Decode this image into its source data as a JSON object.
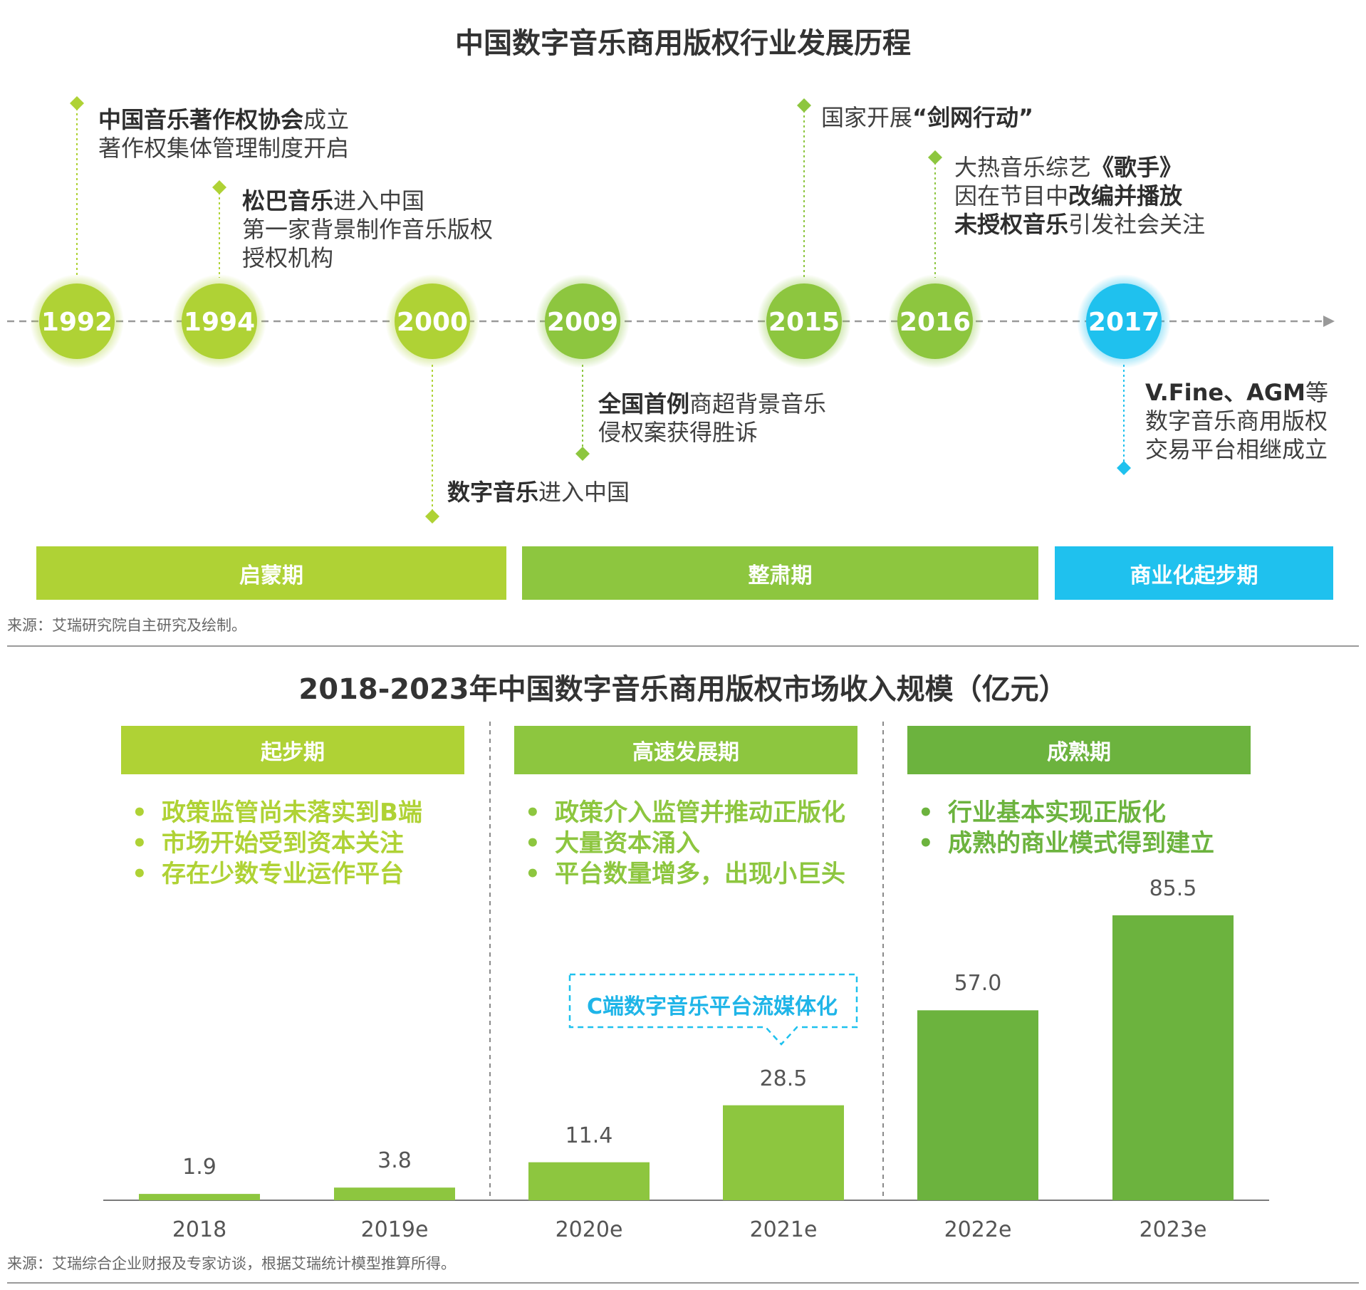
{
  "timeline": {
    "title": "中国数字音乐商用版权行业发展历程",
    "years": [
      "1992",
      "1994",
      "2000",
      "2009",
      "2015",
      "2016",
      "2017"
    ],
    "events": [
      {
        "year": "1992",
        "lines": [
          [
            {
              "t": "中国音乐著作权协会",
              "b": true
            },
            {
              "t": "成立",
              "b": false
            }
          ],
          [
            {
              "t": "著作权集体管理制度开启",
              "b": false
            }
          ]
        ]
      },
      {
        "year": "1994",
        "lines": [
          [
            {
              "t": "松巴音乐",
              "b": true
            },
            {
              "t": "进入中国",
              "b": false
            }
          ],
          [
            {
              "t": "第一家背景制作音乐版权",
              "b": false
            }
          ],
          [
            {
              "t": "授权机构",
              "b": false
            }
          ]
        ]
      },
      {
        "year": "2000",
        "lines": [
          [
            {
              "t": "数字音乐",
              "b": true
            },
            {
              "t": "进入中国",
              "b": false
            }
          ]
        ]
      },
      {
        "year": "2009",
        "lines": [
          [
            {
              "t": "全国首例",
              "b": true
            },
            {
              "t": "商超背景音乐",
              "b": false
            }
          ],
          [
            {
              "t": "侵权案获得胜诉",
              "b": false
            }
          ]
        ]
      },
      {
        "year": "2015",
        "lines": [
          [
            {
              "t": "国家开展",
              "b": false
            },
            {
              "t": "“剑网行动”",
              "b": true
            }
          ]
        ]
      },
      {
        "year": "2016",
        "lines": [
          [
            {
              "t": "大热音乐综艺",
              "b": false
            },
            {
              "t": "《歌手》",
              "b": true
            }
          ],
          [
            {
              "t": "因在节目中",
              "b": false
            },
            {
              "t": "改编并播放",
              "b": true
            }
          ],
          [
            {
              "t": "未授权音乐",
              "b": true
            },
            {
              "t": "引发社会关注",
              "b": false
            }
          ]
        ]
      },
      {
        "year": "2017",
        "lines": [
          [
            {
              "t": "V.Fine、AGM",
              "b": true
            },
            {
              "t": "等",
              "b": false
            }
          ],
          [
            {
              "t": "数字音乐商用版权",
              "b": false
            }
          ],
          [
            {
              "t": "交易平台相继成立",
              "b": false
            }
          ]
        ]
      }
    ],
    "phases": [
      "启蒙期",
      "整肃期",
      "商业化起步期"
    ],
    "source": "来源：艾瑞研究院自主研究及绘制。"
  },
  "colors": {
    "lime": "#afd235",
    "green": "#8dc63f",
    "dark_green": "#6cb33e",
    "cyan": "#1fc1ee",
    "axis": "#999999"
  },
  "chart_data": {
    "type": "bar",
    "title": "2018-2023年中国数字音乐商用版权市场收入规模（亿元）",
    "categories": [
      "2018",
      "2019e",
      "2020e",
      "2021e",
      "2022e",
      "2023e"
    ],
    "values": [
      1.9,
      3.8,
      11.4,
      28.5,
      57.0,
      85.5
    ],
    "value_labels": [
      "1.9",
      "3.8",
      "11.4",
      "28.5",
      "57.0",
      "85.5"
    ],
    "xlabel": "",
    "ylabel": "",
    "ylim": [
      0,
      85.5
    ],
    "grid": false,
    "phases": [
      {
        "name": "起步期",
        "bullets": [
          "政策监管尚未落实到B端",
          "市场开始受到资本关注",
          "存在少数专业运作平台"
        ]
      },
      {
        "name": "高速发展期",
        "bullets": [
          "政策介入监管并推动正版化",
          "大量资本涌入",
          "平台数量增多，出现小巨头"
        ]
      },
      {
        "name": "成熟期",
        "bullets": [
          "行业基本实现正版化",
          "成熟的商业模式得到建立"
        ]
      }
    ],
    "annotation": "C端数字音乐平台流媒体化",
    "source": "来源：艾瑞综合企业财报及专家访谈，根据艾瑞统计模型推算所得。"
  }
}
